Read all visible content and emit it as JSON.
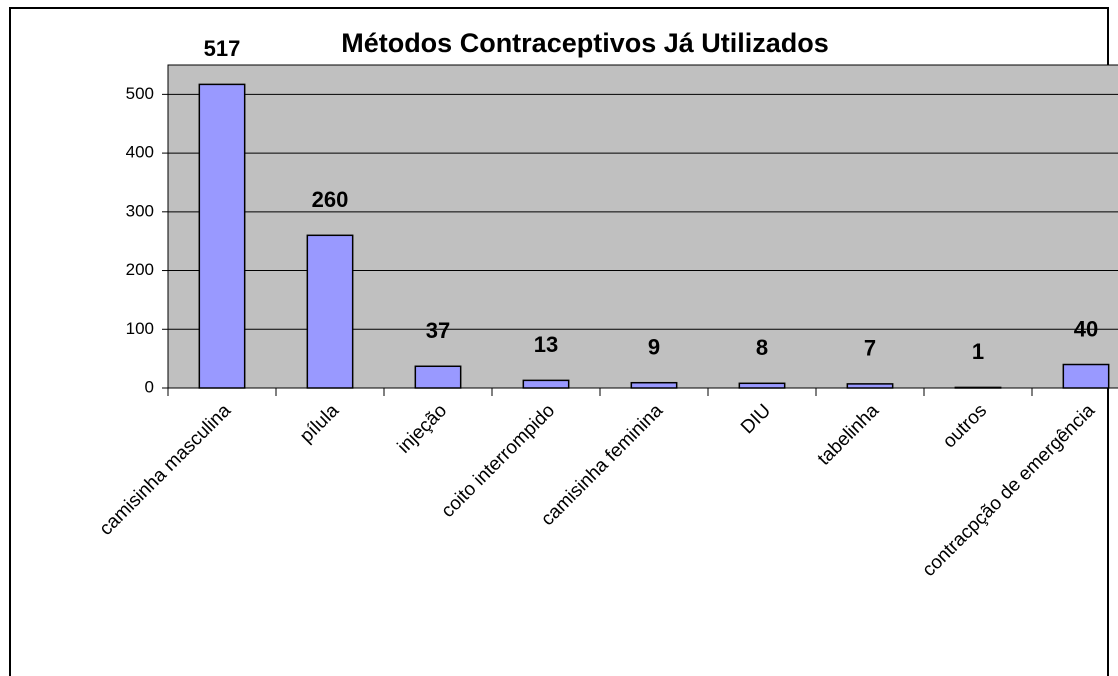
{
  "chart_data": {
    "type": "bar",
    "title": "Métodos Contraceptivos Já Utilizados",
    "categories": [
      "camisinha masculina",
      "pílula",
      "injeção",
      "coito interrompido",
      "camisinha feminina",
      "DIU",
      "tabelinha",
      "outros",
      "contracpção de emergência"
    ],
    "values": [
      517,
      260,
      37,
      13,
      9,
      8,
      7,
      1,
      40
    ],
    "color": "#9999ff",
    "ylim": [
      0,
      550
    ],
    "yticks": [
      0,
      100,
      200,
      300,
      400,
      500
    ],
    "grid": true
  }
}
